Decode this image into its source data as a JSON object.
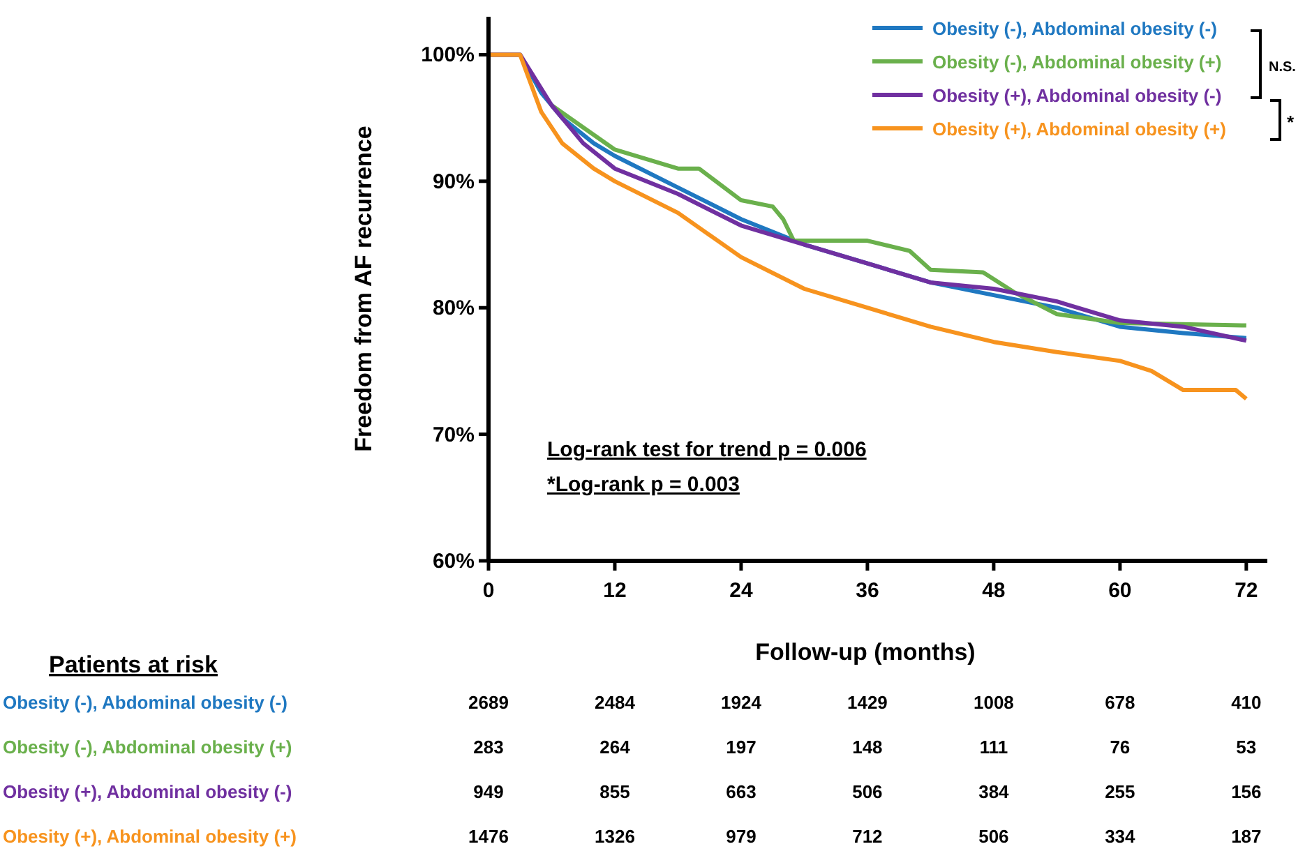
{
  "chart_data": {
    "type": "line",
    "xlabel": "Follow-up (months)",
    "ylabel": "Freedom from AF recurrence",
    "xlim": [
      0,
      74
    ],
    "xticks": [
      0,
      12,
      24,
      36,
      48,
      60,
      72
    ],
    "ylim": [
      60,
      103
    ],
    "yticks": [
      {
        "value": 60,
        "label": "60%"
      },
      {
        "value": 70,
        "label": "70%"
      },
      {
        "value": 80,
        "label": "80%"
      },
      {
        "value": 90,
        "label": "90%"
      },
      {
        "value": 100,
        "label": "100%"
      }
    ],
    "grid": false,
    "legend": "top right",
    "line_style": "solid",
    "series": [
      {
        "name": "Obesity (-), Abdominal obesity (-)",
        "color": "#1f78c1",
        "x": [
          0,
          3,
          5,
          7,
          10,
          12,
          18,
          24,
          30,
          36,
          42,
          48,
          54,
          60,
          66,
          72
        ],
        "values": [
          100,
          100,
          97,
          95,
          93,
          92,
          89.5,
          87,
          85,
          83.5,
          82,
          81,
          80,
          78.5,
          78,
          77.6
        ]
      },
      {
        "name": "Obesity (-), Abdominal obesity (+)",
        "color": "#6ab04c",
        "x": [
          6,
          12,
          18,
          20,
          24,
          27,
          28,
          29,
          36,
          40,
          42,
          47,
          50,
          54,
          60,
          72
        ],
        "values": [
          96,
          92.5,
          91,
          91,
          88.5,
          88,
          87,
          85.3,
          85.3,
          84.5,
          83,
          82.8,
          81.2,
          79.5,
          78.8,
          78.6
        ]
      },
      {
        "name": "Obesity (+), Abdominal obesity (-)",
        "color": "#7030a0",
        "x": [
          0,
          3,
          6,
          9,
          12,
          18,
          24,
          30,
          36,
          42,
          48,
          54,
          60,
          66,
          72
        ],
        "values": [
          100,
          100,
          96,
          93,
          91,
          89,
          86.5,
          85,
          83.5,
          82,
          81.5,
          80.5,
          79,
          78.5,
          77.4
        ]
      },
      {
        "name": "Obesity (+), Abdominal obesity (+)",
        "color": "#f7931e",
        "x": [
          0,
          3,
          5,
          7,
          10,
          12,
          18,
          24,
          30,
          36,
          42,
          48,
          54,
          60,
          63,
          66,
          71,
          72
        ],
        "values": [
          100,
          100,
          95.5,
          93,
          91,
          90,
          87.5,
          84,
          81.5,
          80,
          78.5,
          77.3,
          76.5,
          75.8,
          75,
          73.5,
          73.5,
          72.8
        ]
      }
    ],
    "annotations": [
      "Log-rank test for trend p = 0.006",
      "*Log-rank p = 0.003",
      "N.S.",
      "*",
      "Patients at risk",
      "2689",
      "2484",
      "1924",
      "1429",
      "1008",
      "678",
      "410",
      "283",
      "264",
      "197",
      "148",
      "111",
      "76",
      "53",
      "949",
      "855",
      "663",
      "506",
      "384",
      "255",
      "156",
      "1476",
      "1326",
      "979",
      "712",
      "506",
      "334",
      "187"
    ]
  }
}
